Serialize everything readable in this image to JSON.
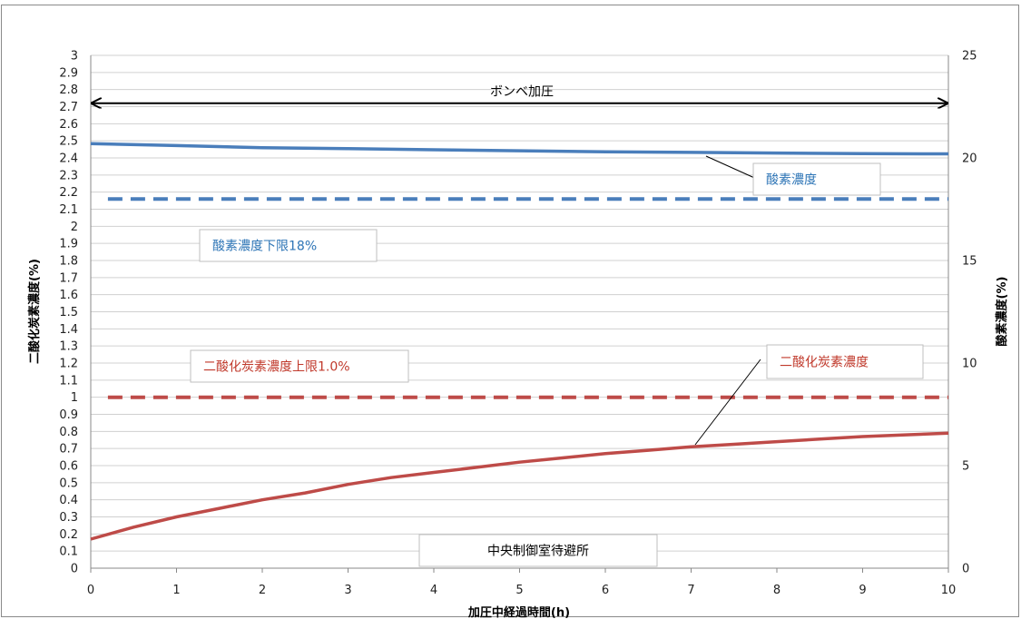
{
  "chart_data": {
    "type": "line",
    "xlabel": "加圧中経過時間(h)",
    "ylabel": "二酸化炭素濃度(%)",
    "y2label": "酸素濃度(%)",
    "x_ticks": [
      0,
      1,
      2,
      3,
      4,
      5,
      6,
      7,
      8,
      9,
      10
    ],
    "xlim": [
      0,
      10
    ],
    "ylim": [
      0,
      3
    ],
    "y_ticks": [
      "0",
      "0.1",
      "0.2",
      "0.3",
      "0.4",
      "0.5",
      "0.6",
      "0.7",
      "0.8",
      "0.9",
      "1",
      "1.1",
      "1.2",
      "1.3",
      "1.4",
      "1.5",
      "1.6",
      "1.7",
      "1.8",
      "1.9",
      "2",
      "2.1",
      "2.2",
      "2.3",
      "2.4",
      "2.5",
      "2.6",
      "2.7",
      "2.8",
      "2.9",
      "3"
    ],
    "y2lim": [
      0,
      25
    ],
    "y2_ticks": [
      "0",
      "5",
      "10",
      "15",
      "20",
      "25"
    ],
    "grid": true,
    "series": [
      {
        "name": "酸素濃度",
        "axis": "right",
        "style": "solid",
        "color": "#4a7ebb",
        "x": [
          0,
          1,
          2,
          3,
          4,
          5,
          6,
          7,
          8,
          9,
          10
        ],
        "y": [
          20.7,
          20.6,
          20.5,
          20.45,
          20.4,
          20.35,
          20.3,
          20.27,
          20.24,
          20.21,
          20.2
        ]
      },
      {
        "name": "二酸化炭素濃度",
        "axis": "left",
        "style": "solid",
        "color": "#be4b48",
        "x": [
          0,
          0.5,
          1,
          1.5,
          2,
          2.5,
          3,
          3.5,
          4,
          4.5,
          5,
          5.5,
          6,
          6.5,
          7,
          7.5,
          8,
          8.5,
          9,
          9.5,
          10
        ],
        "y": [
          0.17,
          0.24,
          0.3,
          0.35,
          0.4,
          0.44,
          0.49,
          0.53,
          0.56,
          0.59,
          0.62,
          0.645,
          0.67,
          0.69,
          0.71,
          0.725,
          0.74,
          0.755,
          0.77,
          0.78,
          0.79
        ]
      },
      {
        "name": "酸素濃度下限18%",
        "axis": "right",
        "style": "dashed",
        "color": "#4a7ebb",
        "x": [
          0.2,
          10
        ],
        "y": [
          18,
          18
        ]
      },
      {
        "name": "二酸化炭素濃度上限1.0%",
        "axis": "left",
        "style": "dashed",
        "color": "#be4b48",
        "x": [
          0.2,
          10
        ],
        "y": [
          1.0,
          1.0
        ]
      }
    ],
    "annotations": {
      "bombe_pressurization": "ボンベ加圧",
      "oxygen_label": "酸素濃度",
      "oxygen_limit_label": "酸素濃度下限18%",
      "co2_label": "二酸化炭素濃度",
      "co2_limit_label": "二酸化炭素濃度上限1.0%",
      "location_label": "中央制御室待避所"
    }
  }
}
